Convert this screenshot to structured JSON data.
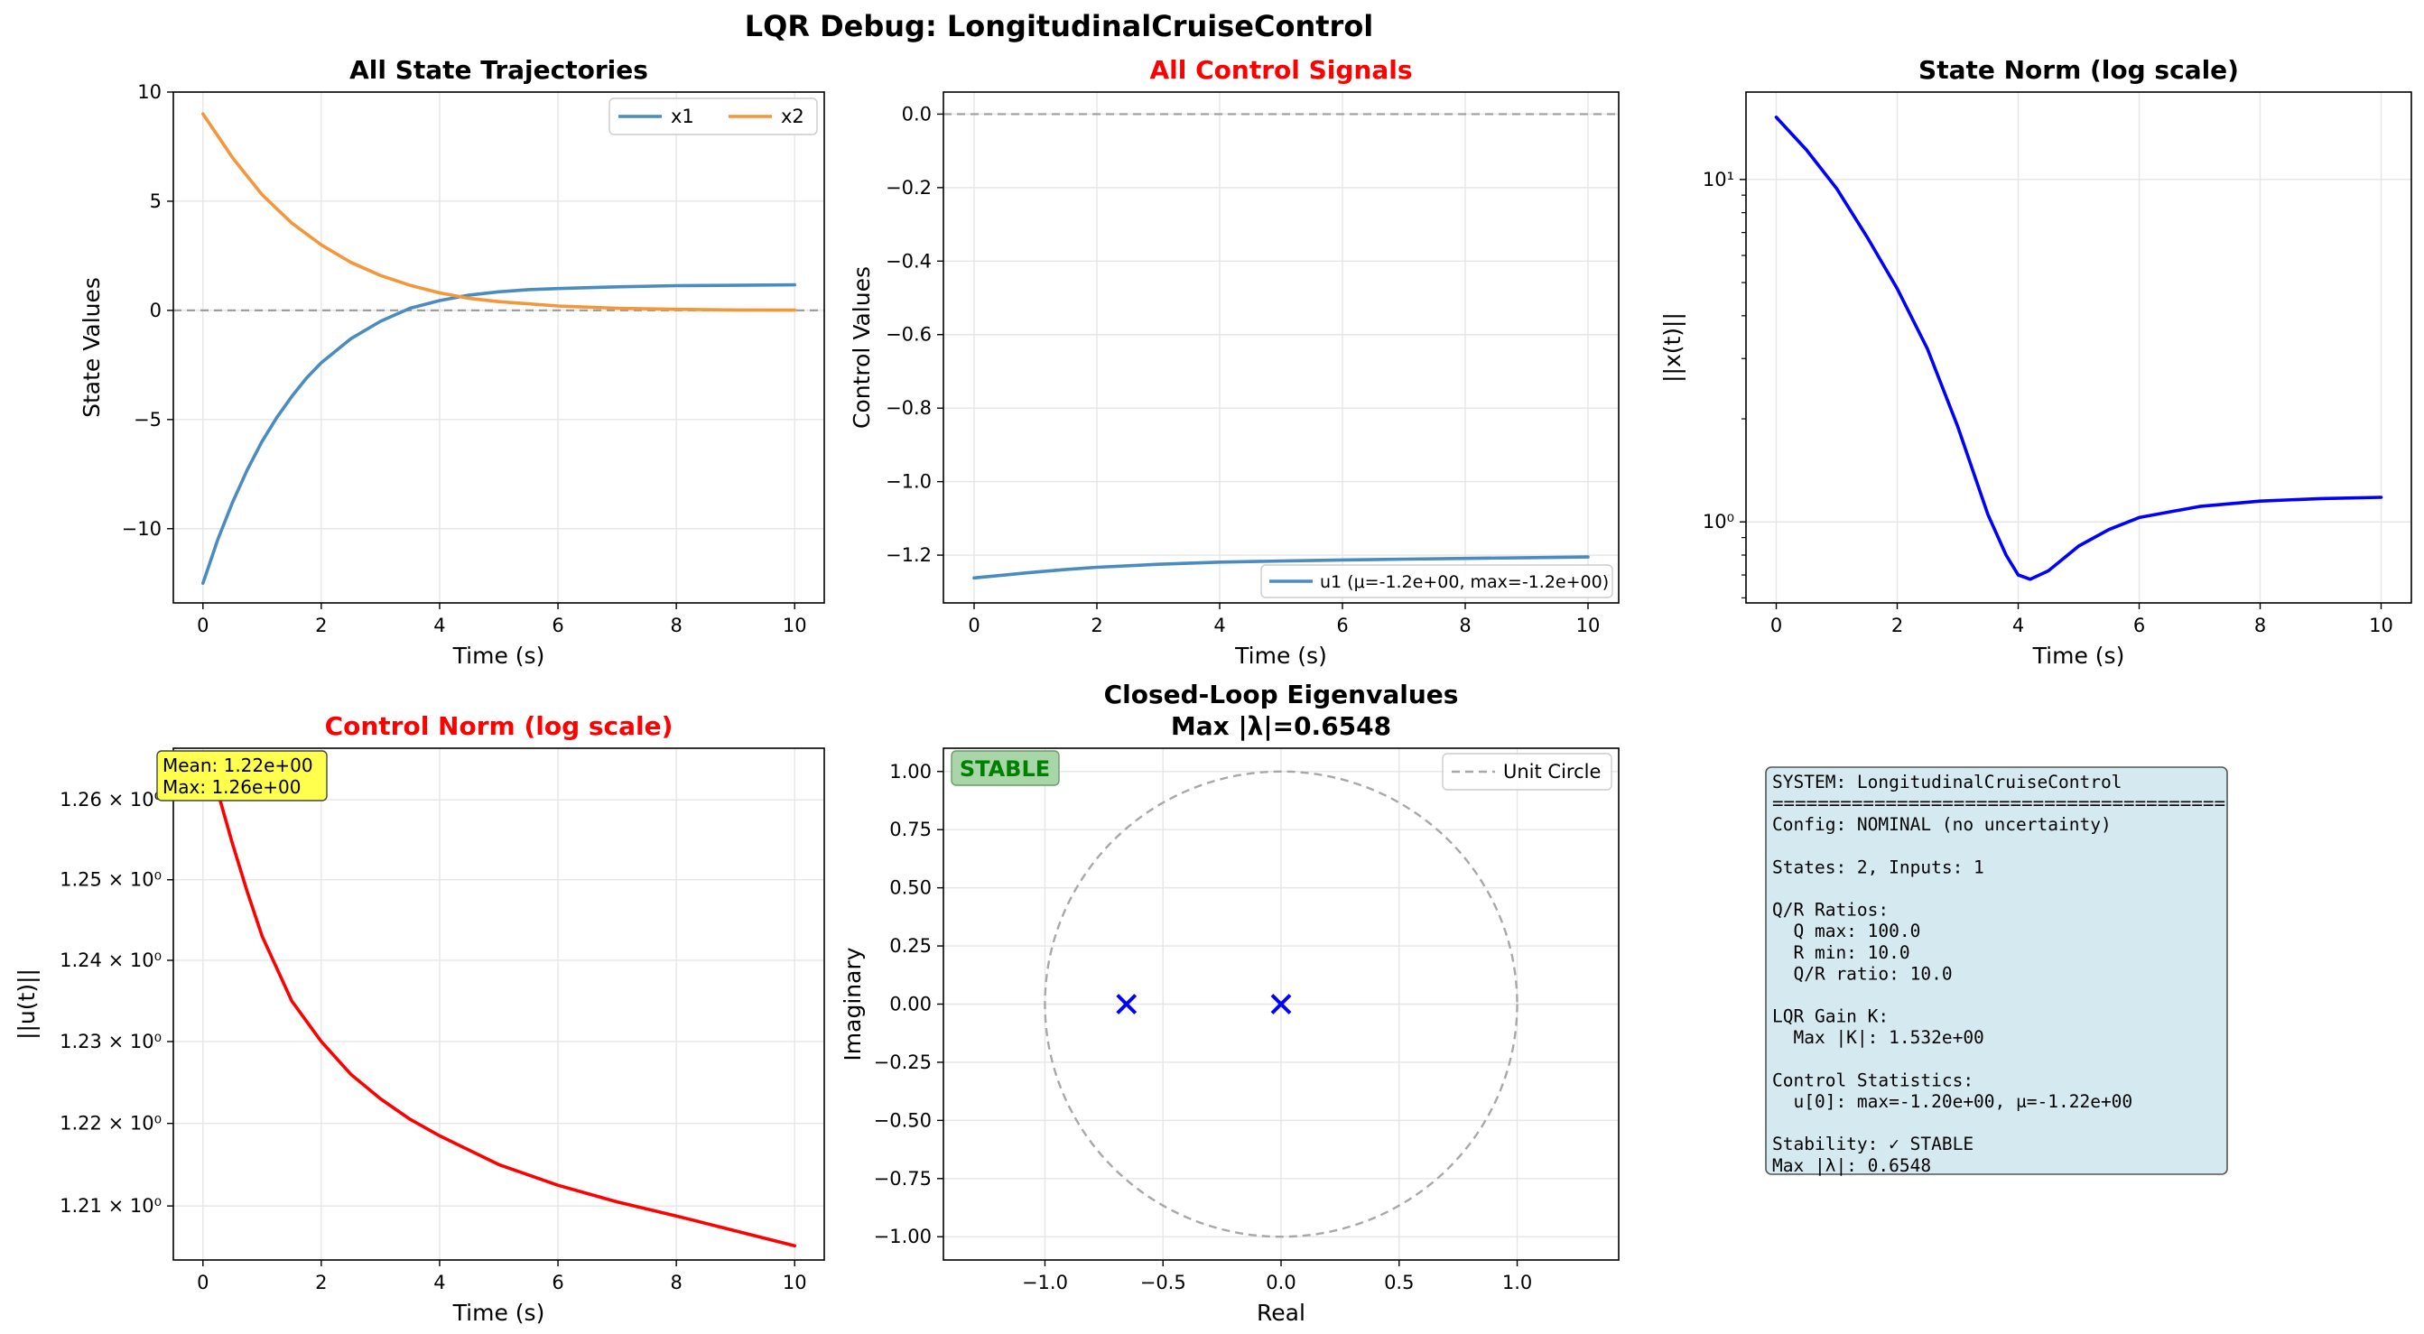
{
  "suptitle": "LQR Debug: LongitudinalCruiseControl",
  "chart_data": [
    {
      "id": "states",
      "type": "line",
      "title": "All State Trajectories",
      "title_color": "#000000",
      "xlabel": "Time (s)",
      "ylabel": "State Values",
      "xlim": [
        -0.5,
        10.5
      ],
      "ylim": [
        -13.4,
        10.0
      ],
      "xticks": [
        0,
        2,
        4,
        6,
        8,
        10
      ],
      "xtick_labels": [
        "0",
        "2",
        "4",
        "6",
        "8",
        "10"
      ],
      "yticks": [
        10,
        5,
        0,
        -5,
        -10
      ],
      "ytick_labels": [
        "10",
        "5",
        "0",
        "−5",
        "−10"
      ],
      "grid": true,
      "hline": 0,
      "legend": "top-right",
      "series": [
        {
          "name": "x1",
          "color": "#4a8bc0",
          "x": [
            0,
            0.25,
            0.5,
            0.75,
            1,
            1.25,
            1.5,
            1.75,
            2,
            2.5,
            3,
            3.5,
            4,
            4.5,
            5,
            5.5,
            6,
            7,
            8,
            9,
            10
          ],
          "y": [
            -12.5,
            -10.5,
            -8.8,
            -7.3,
            -6.0,
            -4.9,
            -3.95,
            -3.1,
            -2.4,
            -1.3,
            -0.5,
            0.1,
            0.45,
            0.7,
            0.85,
            0.95,
            1.0,
            1.08,
            1.13,
            1.15,
            1.17
          ]
        },
        {
          "name": "x2",
          "color": "#f5963a",
          "x": [
            0,
            0.5,
            1,
            1.5,
            2,
            2.5,
            3,
            3.5,
            4,
            4.5,
            5,
            6,
            7,
            8,
            9,
            10
          ],
          "y": [
            9.0,
            7.0,
            5.3,
            4.0,
            3.0,
            2.2,
            1.6,
            1.15,
            0.8,
            0.55,
            0.4,
            0.2,
            0.1,
            0.05,
            0.02,
            0.01
          ]
        }
      ]
    },
    {
      "id": "controls",
      "type": "line",
      "title": "All Control Signals",
      "title_color": "#ff0000",
      "xlabel": "Time (s)",
      "ylabel": "Control Values",
      "xlim": [
        -0.5,
        10.5
      ],
      "ylim": [
        -1.33,
        0.06
      ],
      "xticks": [
        0,
        2,
        4,
        6,
        8,
        10
      ],
      "xtick_labels": [
        "0",
        "2",
        "4",
        "6",
        "8",
        "10"
      ],
      "yticks": [
        0.0,
        -0.2,
        -0.4,
        -0.6,
        -0.8,
        -1.0,
        -1.2
      ],
      "ytick_labels": [
        "0.0",
        "−0.2",
        "−0.4",
        "−0.6",
        "−0.8",
        "−1.0",
        "−1.2"
      ],
      "grid": true,
      "hline": 0,
      "legend": "bottom-right",
      "series": [
        {
          "name": "u1 (μ=-1.2e+00, max=-1.2e+00)",
          "color": "#4a8bc0",
          "x": [
            0,
            0.5,
            1,
            1.5,
            2,
            3,
            4,
            5,
            6,
            7,
            8,
            9,
            10
          ],
          "y": [
            -1.262,
            -1.254,
            -1.246,
            -1.239,
            -1.233,
            -1.225,
            -1.219,
            -1.216,
            -1.213,
            -1.211,
            -1.209,
            -1.207,
            -1.205
          ]
        }
      ]
    },
    {
      "id": "state-norm",
      "type": "line",
      "title": "State Norm (log scale)",
      "title_color": "#000000",
      "xlabel": "Time (s)",
      "ylabel": "||x(t)||",
      "xlim": [
        -0.5,
        10.5
      ],
      "ylim": [
        0.58,
        18.0
      ],
      "yscale": "log",
      "xticks": [
        0,
        2,
        4,
        6,
        8,
        10
      ],
      "xtick_labels": [
        "0",
        "2",
        "4",
        "6",
        "8",
        "10"
      ],
      "yticks": [
        10,
        1
      ],
      "ytick_labels": [
        "10¹",
        "10⁰"
      ],
      "grid": true,
      "series": [
        {
          "name": "",
          "color": "#0000ff",
          "x": [
            0,
            0.5,
            1,
            1.5,
            2,
            2.5,
            3,
            3.5,
            3.8,
            4,
            4.2,
            4.5,
            5,
            5.5,
            6,
            7,
            8,
            9,
            10
          ],
          "y": [
            15.2,
            12.2,
            9.4,
            6.8,
            4.8,
            3.2,
            1.9,
            1.05,
            0.8,
            0.7,
            0.68,
            0.72,
            0.85,
            0.95,
            1.03,
            1.11,
            1.15,
            1.17,
            1.18
          ]
        }
      ]
    },
    {
      "id": "control-norm",
      "type": "line",
      "title": "Control Norm (log scale)",
      "title_color": "#ff0000",
      "xlabel": "Time (s)",
      "ylabel": "||u(t)||",
      "xlim": [
        -0.5,
        10.5
      ],
      "ylim": [
        1.2035,
        1.2665
      ],
      "yscale": "log",
      "xticks": [
        0,
        2,
        4,
        6,
        8,
        10
      ],
      "xtick_labels": [
        "0",
        "2",
        "4",
        "6",
        "8",
        "10"
      ],
      "yticks": [
        1.26,
        1.25,
        1.24,
        1.23,
        1.22,
        1.21
      ],
      "ytick_labels": [
        "1.26 × 10⁰",
        "1.25 × 10⁰",
        "1.24 × 10⁰",
        "1.23 × 10⁰",
        "1.22 × 10⁰",
        "1.21 × 10⁰"
      ],
      "grid": true,
      "annotation": [
        "Mean: 1.22e+00",
        "Max: 1.26e+00"
      ],
      "series": [
        {
          "name": "",
          "color": "#ff0000",
          "x": [
            0,
            0.25,
            0.5,
            0.75,
            1,
            1.5,
            2,
            2.5,
            3,
            3.5,
            4,
            5,
            6,
            7,
            8,
            9,
            10
          ],
          "y": [
            1.266,
            1.261,
            1.2545,
            1.2485,
            1.243,
            1.235,
            1.23,
            1.226,
            1.223,
            1.2205,
            1.2185,
            1.215,
            1.2125,
            1.2105,
            1.2088,
            1.207,
            1.2052
          ]
        }
      ]
    },
    {
      "id": "eigenvalues",
      "type": "scatter",
      "title_lines": [
        "Closed-Loop Eigenvalues",
        "Max |λ|=0.6548"
      ],
      "title_color": "#000000",
      "xlabel": "Real",
      "ylabel": "Imaginary",
      "xlim": [
        -1.43,
        1.43
      ],
      "ylim": [
        -1.1,
        1.1
      ],
      "xticks": [
        -1.0,
        -0.5,
        0.0,
        0.5,
        1.0
      ],
      "xtick_labels": [
        "−1.0",
        "−0.5",
        "0.0",
        "0.5",
        "1.0"
      ],
      "yticks": [
        1.0,
        0.75,
        0.5,
        0.25,
        0.0,
        -0.25,
        -0.5,
        -0.75,
        -1.0
      ],
      "ytick_labels": [
        "1.00",
        "0.75",
        "0.50",
        "0.25",
        "0.00",
        "−0.25",
        "−0.50",
        "−0.75",
        "−1.00"
      ],
      "grid": true,
      "legend": "top-right",
      "legend_label": "Unit Circle",
      "status_label": "STABLE",
      "points": [
        {
          "re": -0.6548,
          "im": 0.0
        },
        {
          "re": 0.0,
          "im": 0.0
        }
      ]
    }
  ],
  "info_box": {
    "lines": [
      "SYSTEM: LongitudinalCruiseControl",
      "========================================",
      "Config: NOMINAL (no uncertainty)",
      "",
      "States: 2, Inputs: 1",
      "",
      "Q/R Ratios:",
      "  Q max: 100.0",
      "  R min: 10.0",
      "  Q/R ratio: 10.0",
      "",
      "LQR Gain K:",
      "  Max |K|: 1.532e+00",
      "",
      "Control Statistics:",
      "  u[0]: max=-1.20e+00, μ=-1.22e+00",
      "",
      "Stability: ✓ STABLE",
      "Max |λ|: 0.6548"
    ]
  }
}
